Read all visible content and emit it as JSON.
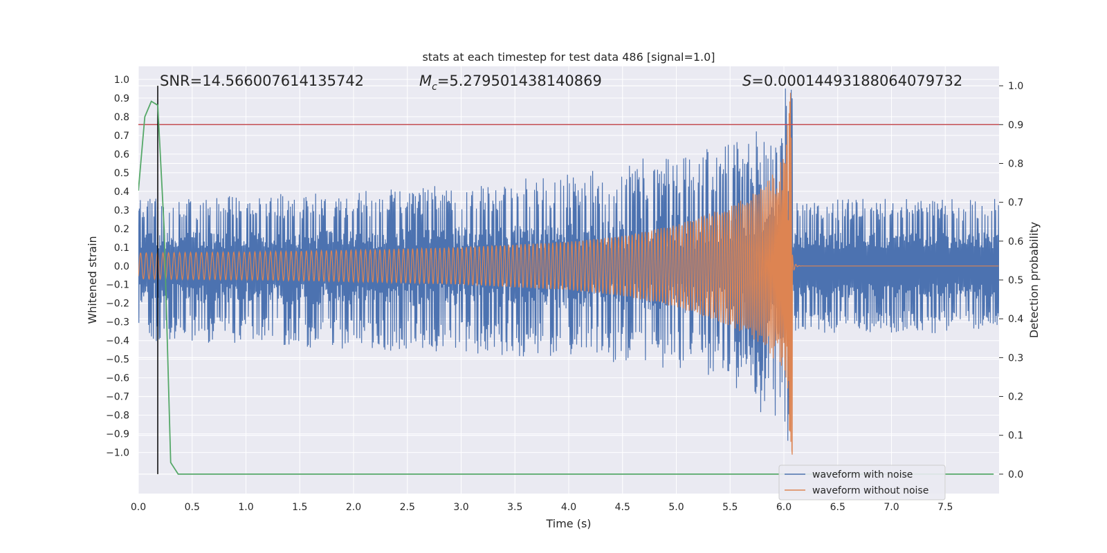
{
  "chart_data": {
    "type": "line",
    "title": "stats at each timestep for test data 486 [signal=1.0]",
    "xlabel": "Time (s)",
    "ylabel_left": "Whitened strain",
    "ylabel_right": "Detection probability",
    "xlim": [
      0.0,
      8.0
    ],
    "ylim_left": [
      -1.22,
      1.07
    ],
    "ylim_right": [
      -0.05,
      1.05
    ],
    "x_ticks": [
      "0.0",
      "0.5",
      "1.0",
      "1.5",
      "2.0",
      "2.5",
      "3.0",
      "3.5",
      "4.0",
      "4.5",
      "5.0",
      "5.5",
      "6.0",
      "6.5",
      "7.0",
      "7.5"
    ],
    "y_ticks_left": [
      "1.0",
      "0.9",
      "0.8",
      "0.7",
      "0.6",
      "0.5",
      "0.4",
      "0.3",
      "0.2",
      "0.1",
      "0.0",
      "−0.1",
      "−0.2",
      "−0.3",
      "−0.4",
      "−0.5",
      "−0.6",
      "−0.7",
      "−0.8",
      "−0.9",
      "−1.0"
    ],
    "y_ticks_right": [
      "1.0",
      "0.9",
      "0.8",
      "0.7",
      "0.6",
      "0.5",
      "0.4",
      "0.3",
      "0.2",
      "0.1",
      "0.0"
    ],
    "annotations": {
      "snr": "SNR=14.566007614135742",
      "mc_symbol": "M",
      "mc_sub": "c",
      "mc_value": "=5.279501438140869",
      "s_symbol": "S",
      "s_value": "=0.00014493188064079732"
    },
    "series": [
      {
        "name": "waveform with noise",
        "color": "#4c72b0",
        "axis": "left",
        "merger_time": 6.08,
        "envelope_t": [
          0.0,
          1.0,
          2.0,
          3.0,
          4.0,
          4.5,
          5.0,
          5.5,
          5.8,
          6.0,
          6.08
        ],
        "envelope_max": [
          0.36,
          0.38,
          0.4,
          0.44,
          0.49,
          0.55,
          0.62,
          0.66,
          0.75,
          0.98,
          0.95
        ],
        "envelope_min": [
          -0.4,
          -0.42,
          -0.45,
          -0.47,
          -0.5,
          -0.52,
          -0.58,
          -0.62,
          -0.8,
          -0.95,
          -1.0
        ],
        "post_merger_range": [
          -0.36,
          0.36
        ]
      },
      {
        "name": "waveform without noise",
        "color": "#dd8452",
        "axis": "left",
        "merger_time": 6.08,
        "envelope_t": [
          0.0,
          1.0,
          2.0,
          3.0,
          4.0,
          4.5,
          5.0,
          5.5,
          5.8,
          6.0,
          6.08
        ],
        "envelope_amp": [
          0.07,
          0.075,
          0.085,
          0.1,
          0.13,
          0.16,
          0.22,
          0.32,
          0.42,
          0.58,
          1.05
        ]
      },
      {
        "name": "detection probability",
        "color": "#55a868",
        "axis": "right",
        "x": [
          0.0,
          0.06,
          0.12,
          0.18,
          0.24,
          0.3,
          0.37,
          1.0,
          2.0,
          3.0,
          4.0,
          5.0,
          6.0,
          7.0,
          7.95
        ],
        "y": [
          0.73,
          0.92,
          0.96,
          0.95,
          0.63,
          0.03,
          0.0,
          0.0,
          0.0,
          0.0,
          0.0,
          0.0,
          0.0,
          0.0,
          0.0
        ]
      }
    ],
    "threshold": {
      "value": 0.9,
      "axis": "right",
      "color": "#c44e52"
    },
    "vline": {
      "x": 0.18,
      "color": "#000000"
    },
    "legend": {
      "placement": "lower right",
      "entries": [
        "waveform with noise",
        "waveform without noise"
      ]
    },
    "grid": true
  }
}
